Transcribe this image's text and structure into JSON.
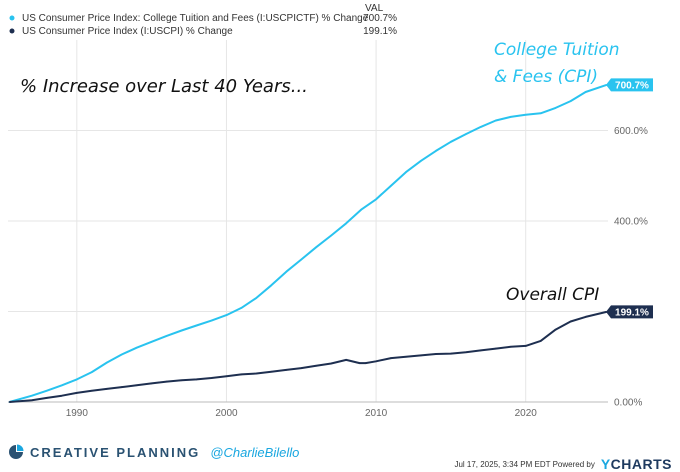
{
  "legend": {
    "header": "VAL",
    "items": [
      {
        "label": "US Consumer Price Index: College Tuition and Fees (I:USCPICTF) % Change",
        "value": "700.7%",
        "color": "#29c3ef"
      },
      {
        "label": "US Consumer Price Index (I:USCPI) % Change",
        "value": "199.1%",
        "color": "#1e2f50"
      }
    ]
  },
  "annotations": {
    "headline": "% Increase over Last 40 Years...",
    "tuition_line1": "College Tuition",
    "tuition_line2": "& Fees (CPI)",
    "cpi": "Overall CPI"
  },
  "end_labels": {
    "tuition": "700.7%",
    "cpi": "199.1%"
  },
  "footer": {
    "brand": "CREATIVE PLANNING",
    "handle": "@CharlieBilello",
    "timestamp": "Jul 17, 2025, 3:34 PM EDT Powered by",
    "ycharts_y": "Y",
    "ycharts_rest": "CHARTS"
  },
  "colors": {
    "tuition": "#29c3ef",
    "cpi": "#1e2f50",
    "grid": "#e6e6e6"
  },
  "chart_data": {
    "type": "line",
    "xlim": [
      1985.4,
      2025.5
    ],
    "ylim": [
      0,
      800
    ],
    "x_ticks": [
      1990,
      2000,
      2010,
      2020
    ],
    "y_ticks": [
      0,
      200,
      400,
      600
    ],
    "y_tick_labels": [
      "0.00%",
      "",
      "400.0%",
      "600.0%"
    ],
    "grid": true,
    "legend_position": "top-left",
    "series": [
      {
        "name": "US Consumer Price Index: College Tuition and Fees (I:USCPICTF) % Change",
        "x": [
          1985.5,
          1987,
          1988,
          1989,
          1990,
          1991,
          1992,
          1993,
          1994,
          1995,
          1996,
          1997,
          1998,
          1999,
          2000,
          2001,
          2002,
          2003,
          2004,
          2005,
          2006,
          2007,
          2008,
          2009,
          2010,
          2011,
          2012,
          2013,
          2014,
          2015,
          2016,
          2017,
          2018,
          2019,
          2020,
          2021,
          2022,
          2023,
          2024,
          2025.4
        ],
        "values": [
          0,
          14,
          25,
          37,
          50,
          66,
          87,
          105,
          120,
          133,
          146,
          158,
          169,
          180,
          192,
          208,
          230,
          258,
          288,
          315,
          342,
          368,
          395,
          425,
          448,
          478,
          508,
          533,
          555,
          575,
          592,
          608,
          622,
          630,
          635,
          638,
          650,
          665,
          685,
          700.7
        ]
      },
      {
        "name": "US Consumer Price Index (I:USCPI) % Change",
        "x": [
          1985.5,
          1987,
          1988,
          1989,
          1990,
          1991,
          1992,
          1993,
          1994,
          1995,
          1996,
          1997,
          1998,
          1999,
          2000,
          2001,
          2002,
          2003,
          2004,
          2005,
          2006,
          2007,
          2008,
          2008.9,
          2009.3,
          2010,
          2011,
          2012,
          2013,
          2014,
          2015,
          2016,
          2017,
          2018,
          2019,
          2020,
          2021,
          2022,
          2023,
          2024,
          2025.4
        ],
        "values": [
          0,
          4,
          9,
          14,
          20,
          25,
          29,
          33,
          37,
          41,
          45,
          48,
          50,
          53,
          57,
          61,
          63,
          67,
          71,
          75,
          80,
          85,
          93,
          86,
          86,
          90,
          97,
          100,
          103,
          106,
          107,
          110,
          114,
          118,
          122,
          124,
          135,
          160,
          178,
          188,
          199.1
        ]
      }
    ]
  }
}
